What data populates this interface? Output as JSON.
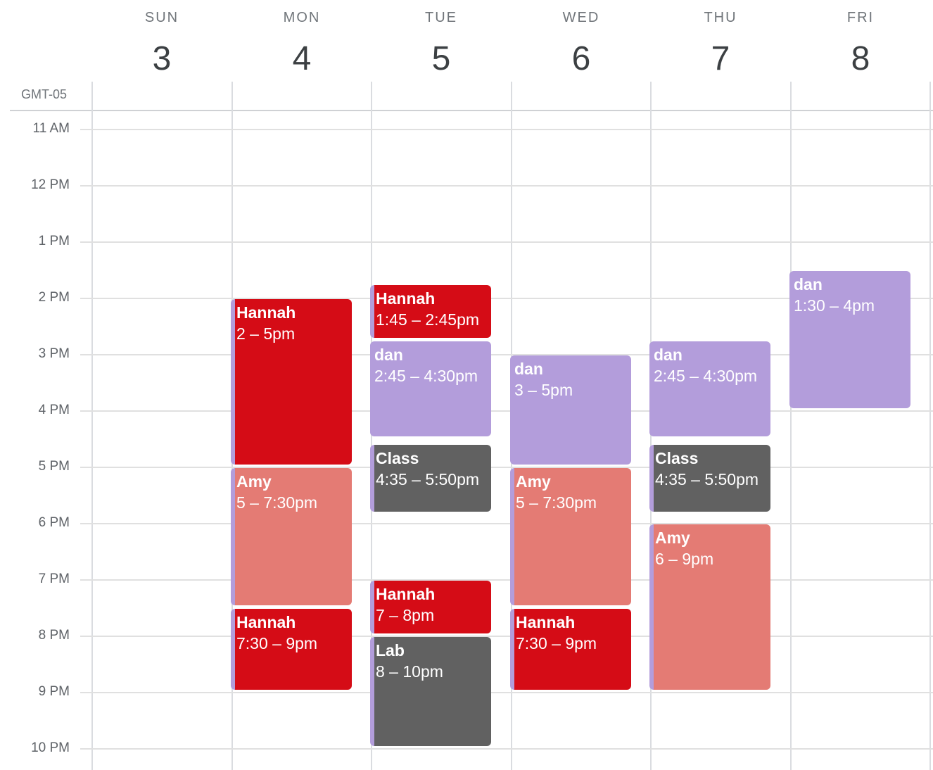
{
  "timezone": "GMT-05",
  "days": [
    {
      "name": "SUN",
      "date": "3"
    },
    {
      "name": "MON",
      "date": "4"
    },
    {
      "name": "TUE",
      "date": "5"
    },
    {
      "name": "WED",
      "date": "6"
    },
    {
      "name": "THU",
      "date": "7"
    },
    {
      "name": "FRI",
      "date": "8"
    }
  ],
  "hours": [
    "11 AM",
    "12 PM",
    "1 PM",
    "2 PM",
    "3 PM",
    "4 PM",
    "5 PM",
    "6 PM",
    "7 PM",
    "8 PM",
    "9 PM",
    "10 PM"
  ],
  "colors": {
    "red": "#d50c16",
    "salmon": "#e47b74",
    "lavender": "#b39ddb",
    "graphite": "#616161"
  },
  "events": [
    {
      "day": 1,
      "title": "Hannah",
      "time": "2 – 5pm",
      "start": 14,
      "end": 17,
      "color": "red"
    },
    {
      "day": 1,
      "title": "Amy",
      "time": "5 – 7:30pm",
      "start": 17,
      "end": 19.5,
      "color": "salmon"
    },
    {
      "day": 1,
      "title": "Hannah",
      "time": "7:30 – 9pm",
      "start": 19.5,
      "end": 21,
      "color": "red"
    },
    {
      "day": 2,
      "title": "Hannah",
      "time": "1:45 – 2:45pm",
      "start": 13.75,
      "end": 14.75,
      "color": "red"
    },
    {
      "day": 2,
      "title": "dan",
      "time": "2:45 – 4:30pm",
      "start": 14.75,
      "end": 16.5,
      "color": "lavender"
    },
    {
      "day": 2,
      "title": "Class",
      "time": "4:35 – 5:50pm",
      "start": 16.5833,
      "end": 17.8333,
      "color": "graphite"
    },
    {
      "day": 2,
      "title": "Hannah",
      "time": "7 – 8pm",
      "start": 19,
      "end": 20,
      "color": "red"
    },
    {
      "day": 2,
      "title": "Lab",
      "time": "8 – 10pm",
      "start": 20,
      "end": 22,
      "color": "graphite"
    },
    {
      "day": 3,
      "title": "dan",
      "time": "3 – 5pm",
      "start": 15,
      "end": 17,
      "color": "lavender"
    },
    {
      "day": 3,
      "title": "Amy",
      "time": "5 – 7:30pm",
      "start": 17,
      "end": 19.5,
      "color": "salmon"
    },
    {
      "day": 3,
      "title": "Hannah",
      "time": "7:30 – 9pm",
      "start": 19.5,
      "end": 21,
      "color": "red"
    },
    {
      "day": 4,
      "title": "dan",
      "time": "2:45 – 4:30pm",
      "start": 14.75,
      "end": 16.5,
      "color": "lavender"
    },
    {
      "day": 4,
      "title": "Class",
      "time": "4:35 – 5:50pm",
      "start": 16.5833,
      "end": 17.8333,
      "color": "graphite"
    },
    {
      "day": 4,
      "title": "Amy",
      "time": "6 – 9pm",
      "start": 18,
      "end": 21,
      "color": "salmon"
    },
    {
      "day": 5,
      "title": "dan",
      "time": "1:30 – 4pm",
      "start": 13.5,
      "end": 16,
      "color": "lavender"
    }
  ]
}
